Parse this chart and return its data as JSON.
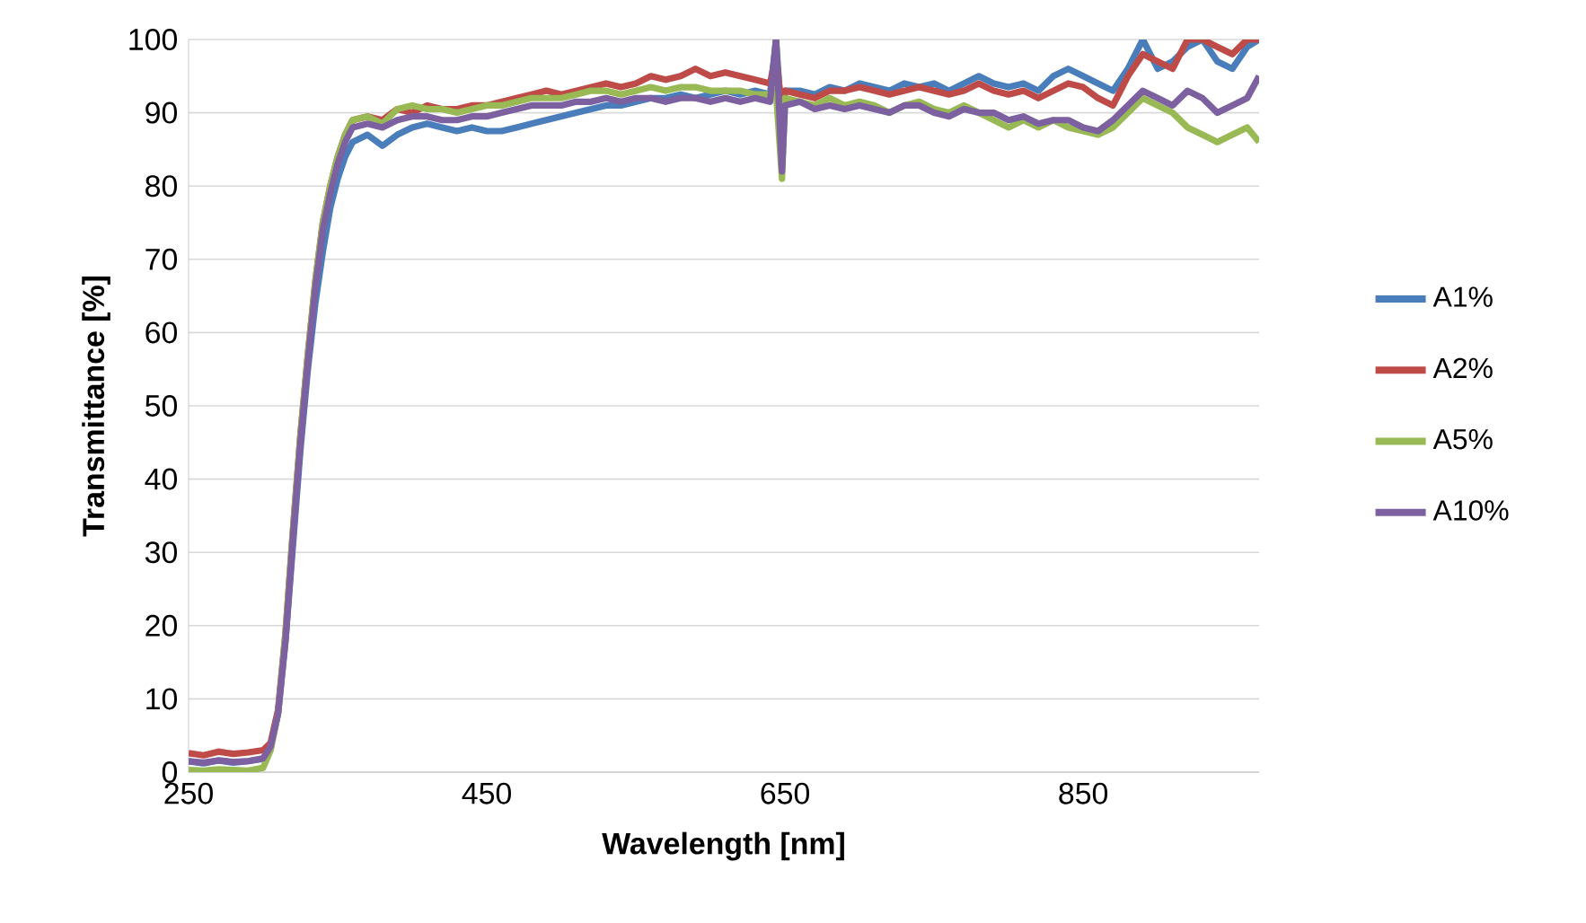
{
  "chart_data": {
    "type": "line",
    "xlabel": "Wavelength [nm]",
    "ylabel": "Transmittance [%]",
    "x": [
      250,
      260,
      270,
      280,
      290,
      300,
      305,
      310,
      315,
      320,
      325,
      330,
      335,
      340,
      345,
      350,
      355,
      360,
      370,
      380,
      390,
      400,
      410,
      420,
      430,
      440,
      450,
      460,
      470,
      480,
      490,
      500,
      510,
      520,
      530,
      540,
      550,
      560,
      570,
      580,
      590,
      600,
      610,
      620,
      630,
      640,
      644,
      648,
      650,
      660,
      670,
      680,
      690,
      700,
      710,
      720,
      730,
      740,
      750,
      760,
      770,
      780,
      790,
      800,
      810,
      820,
      830,
      840,
      850,
      860,
      870,
      880,
      890,
      900,
      910,
      920,
      930,
      940,
      950,
      960,
      968
    ],
    "series": [
      {
        "name": "A1%",
        "color": "#4a7ebb",
        "values": [
          1.5,
          1.2,
          1.6,
          1.3,
          1.5,
          1.8,
          3.5,
          8,
          18,
          31,
          44,
          55,
          64,
          71,
          77,
          81,
          84,
          86,
          87,
          85.5,
          87,
          88,
          88.5,
          88,
          87.5,
          88,
          87.5,
          87.5,
          88,
          88.5,
          89,
          89.5,
          90,
          90.5,
          91,
          91,
          91.5,
          92,
          92,
          92.5,
          92,
          92.5,
          93,
          92.5,
          93,
          92.5,
          100,
          88,
          93,
          93,
          92.5,
          93.5,
          93,
          94,
          93.5,
          93,
          94,
          93.5,
          94,
          93,
          94,
          95,
          94,
          93.5,
          94,
          93,
          95,
          96,
          95,
          94,
          93,
          96,
          100,
          96,
          97,
          99,
          100,
          97,
          96,
          99,
          100
        ]
      },
      {
        "name": "A2%",
        "color": "#be4b48",
        "values": [
          2.6,
          2.3,
          2.8,
          2.5,
          2.7,
          3.0,
          4,
          8.5,
          19,
          33,
          46,
          57,
          67,
          75,
          80,
          84,
          87,
          89,
          89.5,
          89,
          90.5,
          90,
          91,
          90.5,
          90.5,
          91,
          91,
          91.5,
          92,
          92.5,
          93,
          92.5,
          93,
          93.5,
          94,
          93.5,
          94,
          95,
          94.5,
          95,
          96,
          95,
          95.5,
          95,
          94.5,
          94,
          98,
          90,
          93,
          92.5,
          92,
          93,
          93,
          93.5,
          93,
          92.5,
          93,
          93.5,
          93,
          92.5,
          93,
          94,
          93,
          92.5,
          93,
          92,
          93,
          94,
          93.5,
          92,
          91,
          95,
          98,
          97,
          96,
          100,
          100,
          99,
          98,
          100,
          100
        ]
      },
      {
        "name": "A5%",
        "color": "#98b954",
        "values": [
          0.3,
          0.2,
          0.4,
          0.3,
          0.2,
          0.6,
          3,
          8,
          19,
          33,
          46,
          57,
          67,
          75,
          80,
          84,
          87,
          89,
          89.5,
          88.5,
          90.5,
          91,
          90.5,
          90.5,
          90,
          90.5,
          91,
          91,
          91.5,
          92,
          92,
          92,
          92.5,
          93,
          93,
          92.5,
          93,
          93.5,
          93,
          93.5,
          93.5,
          93,
          93,
          93,
          92.5,
          92.5,
          93,
          81,
          92,
          91.5,
          91,
          92,
          91,
          91.5,
          91,
          90,
          91,
          91.5,
          90.5,
          90,
          91,
          90,
          89,
          88,
          89,
          88,
          89,
          88,
          87.5,
          87,
          88,
          90,
          92,
          91,
          90,
          88,
          87,
          86,
          87,
          88,
          86
        ]
      },
      {
        "name": "A10%",
        "color": "#7d60a0",
        "values": [
          1.5,
          1.3,
          1.6,
          1.4,
          1.5,
          1.9,
          3.5,
          8,
          18,
          32,
          45,
          56,
          66,
          74,
          79,
          83,
          86,
          88,
          88.5,
          88,
          89,
          89.5,
          89.5,
          89,
          89,
          89.5,
          89.5,
          90,
          90.5,
          91,
          91,
          91,
          91.5,
          91.5,
          92,
          91.5,
          92,
          92,
          91.5,
          92,
          92,
          91.5,
          92,
          91.5,
          92,
          91.5,
          100,
          82,
          91,
          91.5,
          90.5,
          91,
          90.5,
          91,
          90.5,
          90,
          91,
          91,
          90,
          89.5,
          90.5,
          90,
          90,
          89,
          89.5,
          88.5,
          89,
          89,
          88,
          87.5,
          89,
          91,
          93,
          92,
          91,
          93,
          92,
          90,
          91,
          92,
          95
        ]
      }
    ],
    "xlim": [
      250,
      968
    ],
    "xticks": [
      250,
      450,
      650,
      850
    ],
    "ylim": [
      0,
      100
    ],
    "yticks": [
      0,
      10,
      20,
      30,
      40,
      50,
      60,
      70,
      80,
      90,
      100
    ],
    "grid": "y",
    "legend": "right",
    "marker": "none",
    "line_style": "solid"
  }
}
